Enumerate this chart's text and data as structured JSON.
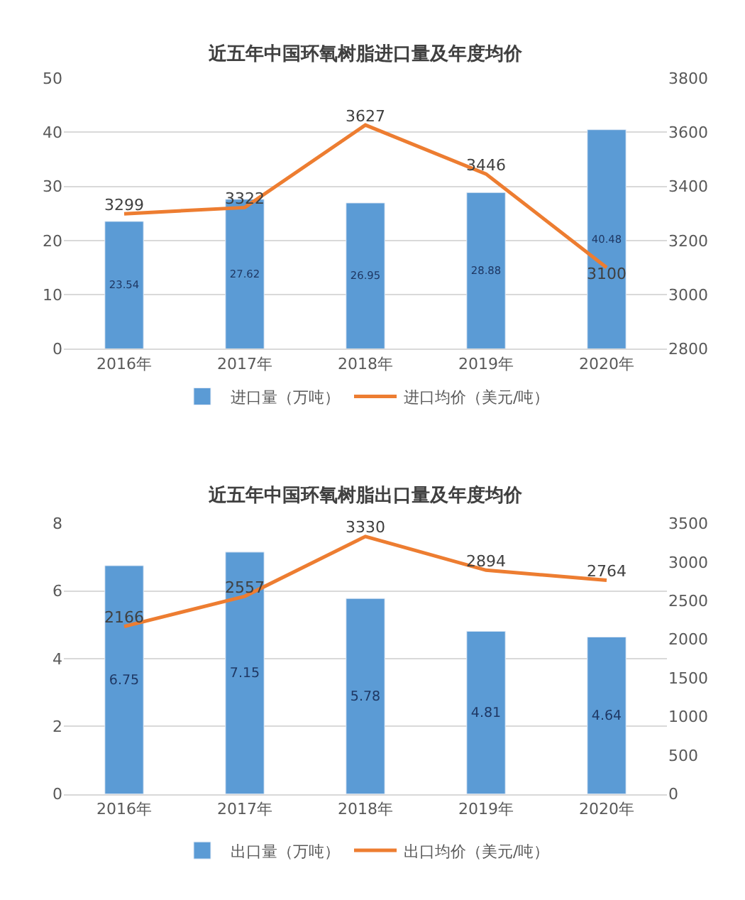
{
  "chart_data": [
    {
      "type": "bar",
      "title": "近五年中国环氧树脂进口量及年度均价",
      "categories": [
        "2016年",
        "2017年",
        "2018年",
        "2019年",
        "2020年"
      ],
      "series": [
        {
          "name": "进口量（万吨）",
          "color": "#5b9bd5",
          "values": [
            23.54,
            27.62,
            26.95,
            28.88,
            40.48
          ]
        },
        {
          "name": "进口均价（美元/吨）",
          "type": "line",
          "axis": "y2",
          "color": "#ed7d31",
          "values": [
            3299,
            3322,
            3627,
            3446,
            3100
          ]
        }
      ],
      "ylim": [
        0,
        50
      ],
      "yticks": [
        0,
        10,
        20,
        30,
        40,
        50
      ],
      "y2lim": [
        2800,
        3800
      ],
      "y2ticks": [
        2800,
        3000,
        3200,
        3400,
        3600,
        3800
      ],
      "data_labels": true,
      "grid": "y",
      "legend": "bottom",
      "marker": "none"
    },
    {
      "type": "bar",
      "title": "近五年中国环氧树脂出口量及年度均价",
      "categories": [
        "2016年",
        "2017年",
        "2018年",
        "2019年",
        "2020年"
      ],
      "series": [
        {
          "name": "出口量（万吨）",
          "color": "#5b9bd5",
          "values": [
            6.75,
            7.15,
            5.78,
            4.81,
            4.64
          ]
        },
        {
          "name": "出口均价（美元/吨）",
          "type": "line",
          "axis": "y2",
          "color": "#ed7d31",
          "values": [
            2166,
            2557,
            3330,
            2894,
            2764
          ]
        }
      ],
      "ylim": [
        0,
        8
      ],
      "yticks": [
        0,
        2,
        4,
        6,
        8
      ],
      "y2lim": [
        0,
        3500
      ],
      "y2ticks": [
        0,
        500,
        1000,
        1500,
        2000,
        2500,
        3000,
        3500
      ],
      "data_labels": true,
      "grid": "y",
      "legend": "bottom",
      "marker": "none"
    }
  ]
}
